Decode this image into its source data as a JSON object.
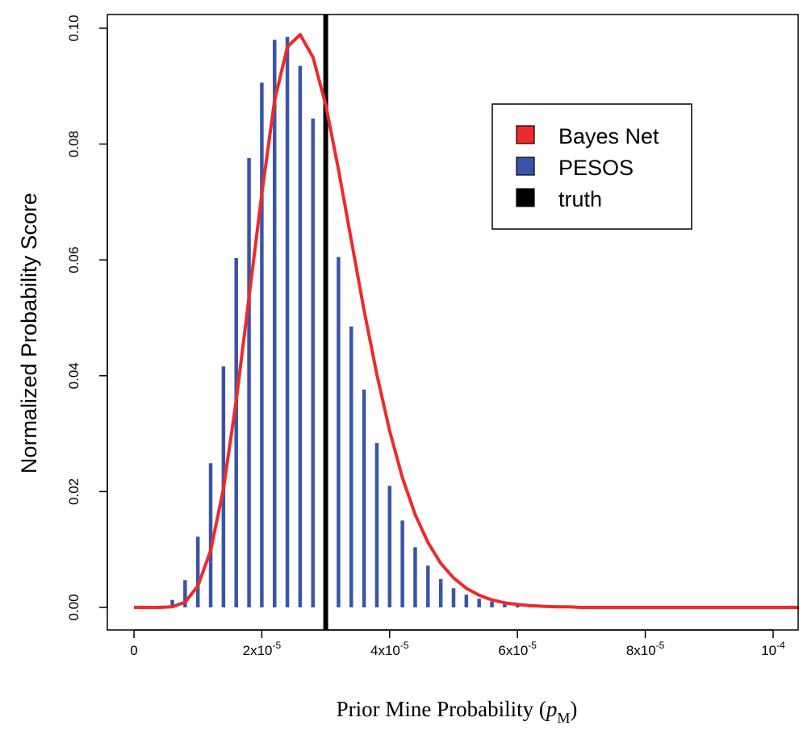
{
  "chart_data": {
    "type": "bar",
    "xlabel_main": "Prior Mine Probability (",
    "xlabel_var": "p",
    "xlabel_sub": "M",
    "xlabel_close": ")",
    "ylabel": "Normalized Probability Score",
    "xlim": [
      0,
      0.000104
    ],
    "ylim": [
      0,
      0.1
    ],
    "x_ticks": [
      {
        "value": 0,
        "base": "0",
        "exp": ""
      },
      {
        "value": 2e-05,
        "base": "2x10",
        "exp": "-5"
      },
      {
        "value": 4e-05,
        "base": "4x10",
        "exp": "-5"
      },
      {
        "value": 6e-05,
        "base": "6x10",
        "exp": "-5"
      },
      {
        "value": 8e-05,
        "base": "8x10",
        "exp": "-5"
      },
      {
        "value": 0.0001,
        "base": "10",
        "exp": "-4"
      }
    ],
    "y_ticks": [
      {
        "value": 0.0,
        "label": "0.00"
      },
      {
        "value": 0.02,
        "label": "0.02"
      },
      {
        "value": 0.04,
        "label": "0.04"
      },
      {
        "value": 0.06,
        "label": "0.06"
      },
      {
        "value": 0.08,
        "label": "0.08"
      },
      {
        "value": 0.1,
        "label": "0.10"
      }
    ],
    "series": [
      {
        "name": "PESOS",
        "kind": "bars",
        "color": "#3b54a8",
        "x": [
          4e-06,
          6e-06,
          8e-06,
          1e-05,
          1.2e-05,
          1.4e-05,
          1.6e-05,
          1.8e-05,
          2e-05,
          2.2e-05,
          2.4e-05,
          2.6e-05,
          2.8e-05,
          3.2e-05,
          3.4e-05,
          3.6e-05,
          3.8e-05,
          4e-05,
          4.2e-05,
          4.4e-05,
          4.6e-05,
          4.8e-05,
          5e-05,
          5.2e-05,
          5.4e-05,
          5.6e-05,
          5.8e-05,
          6e-05,
          6.2e-05,
          6.4e-05,
          6.6e-05
        ],
        "y": [
          0.0003,
          0.0013,
          0.0047,
          0.0122,
          0.0249,
          0.0416,
          0.0603,
          0.0776,
          0.0906,
          0.098,
          0.0985,
          0.0935,
          0.0844,
          0.0605,
          0.0485,
          0.0376,
          0.0284,
          0.021,
          0.015,
          0.0104,
          0.0072,
          0.0049,
          0.0033,
          0.0022,
          0.0015,
          0.001,
          0.0007,
          0.0005,
          0.0003,
          0.0002,
          0.0001
        ]
      },
      {
        "name": "Bayes Net",
        "kind": "line",
        "color": "#ee2a2a",
        "x": [
          0,
          2e-06,
          4e-06,
          6e-06,
          8e-06,
          1e-05,
          1.2e-05,
          1.4e-05,
          1.6e-05,
          1.8e-05,
          2e-05,
          2.2e-05,
          2.4e-05,
          2.6e-05,
          2.8e-05,
          3e-05,
          3.2e-05,
          3.4e-05,
          3.6e-05,
          3.8e-05,
          4e-05,
          4.2e-05,
          4.4e-05,
          4.6e-05,
          4.8e-05,
          5e-05,
          5.2e-05,
          5.4e-05,
          5.6e-05,
          5.8e-05,
          6e-05,
          6.2e-05,
          6.4e-05,
          6.6e-05,
          6.8e-05,
          7e-05,
          7.2e-05,
          7.6e-05,
          8e-05,
          9e-05,
          0.0001,
          0.000104
        ],
        "y": [
          0,
          0,
          0,
          0.0001,
          0.0009,
          0.0037,
          0.0098,
          0.0205,
          0.0357,
          0.0536,
          0.0714,
          0.0875,
          0.0968,
          0.0989,
          0.095,
          0.0868,
          0.0756,
          0.0634,
          0.0513,
          0.0402,
          0.0305,
          0.0224,
          0.016,
          0.0112,
          0.0076,
          0.0051,
          0.0033,
          0.0021,
          0.0013,
          0.0008,
          0.0005,
          0.0003,
          0.0002,
          0.0001,
          0.0001,
          0,
          0,
          0,
          0,
          0,
          0,
          0
        ]
      },
      {
        "name": "truth",
        "kind": "vline",
        "color": "#000000",
        "x": 3e-05
      }
    ],
    "legend": {
      "position": "top-right",
      "items": [
        "Bayes Net",
        "PESOS",
        "truth"
      ]
    },
    "grid": false
  }
}
